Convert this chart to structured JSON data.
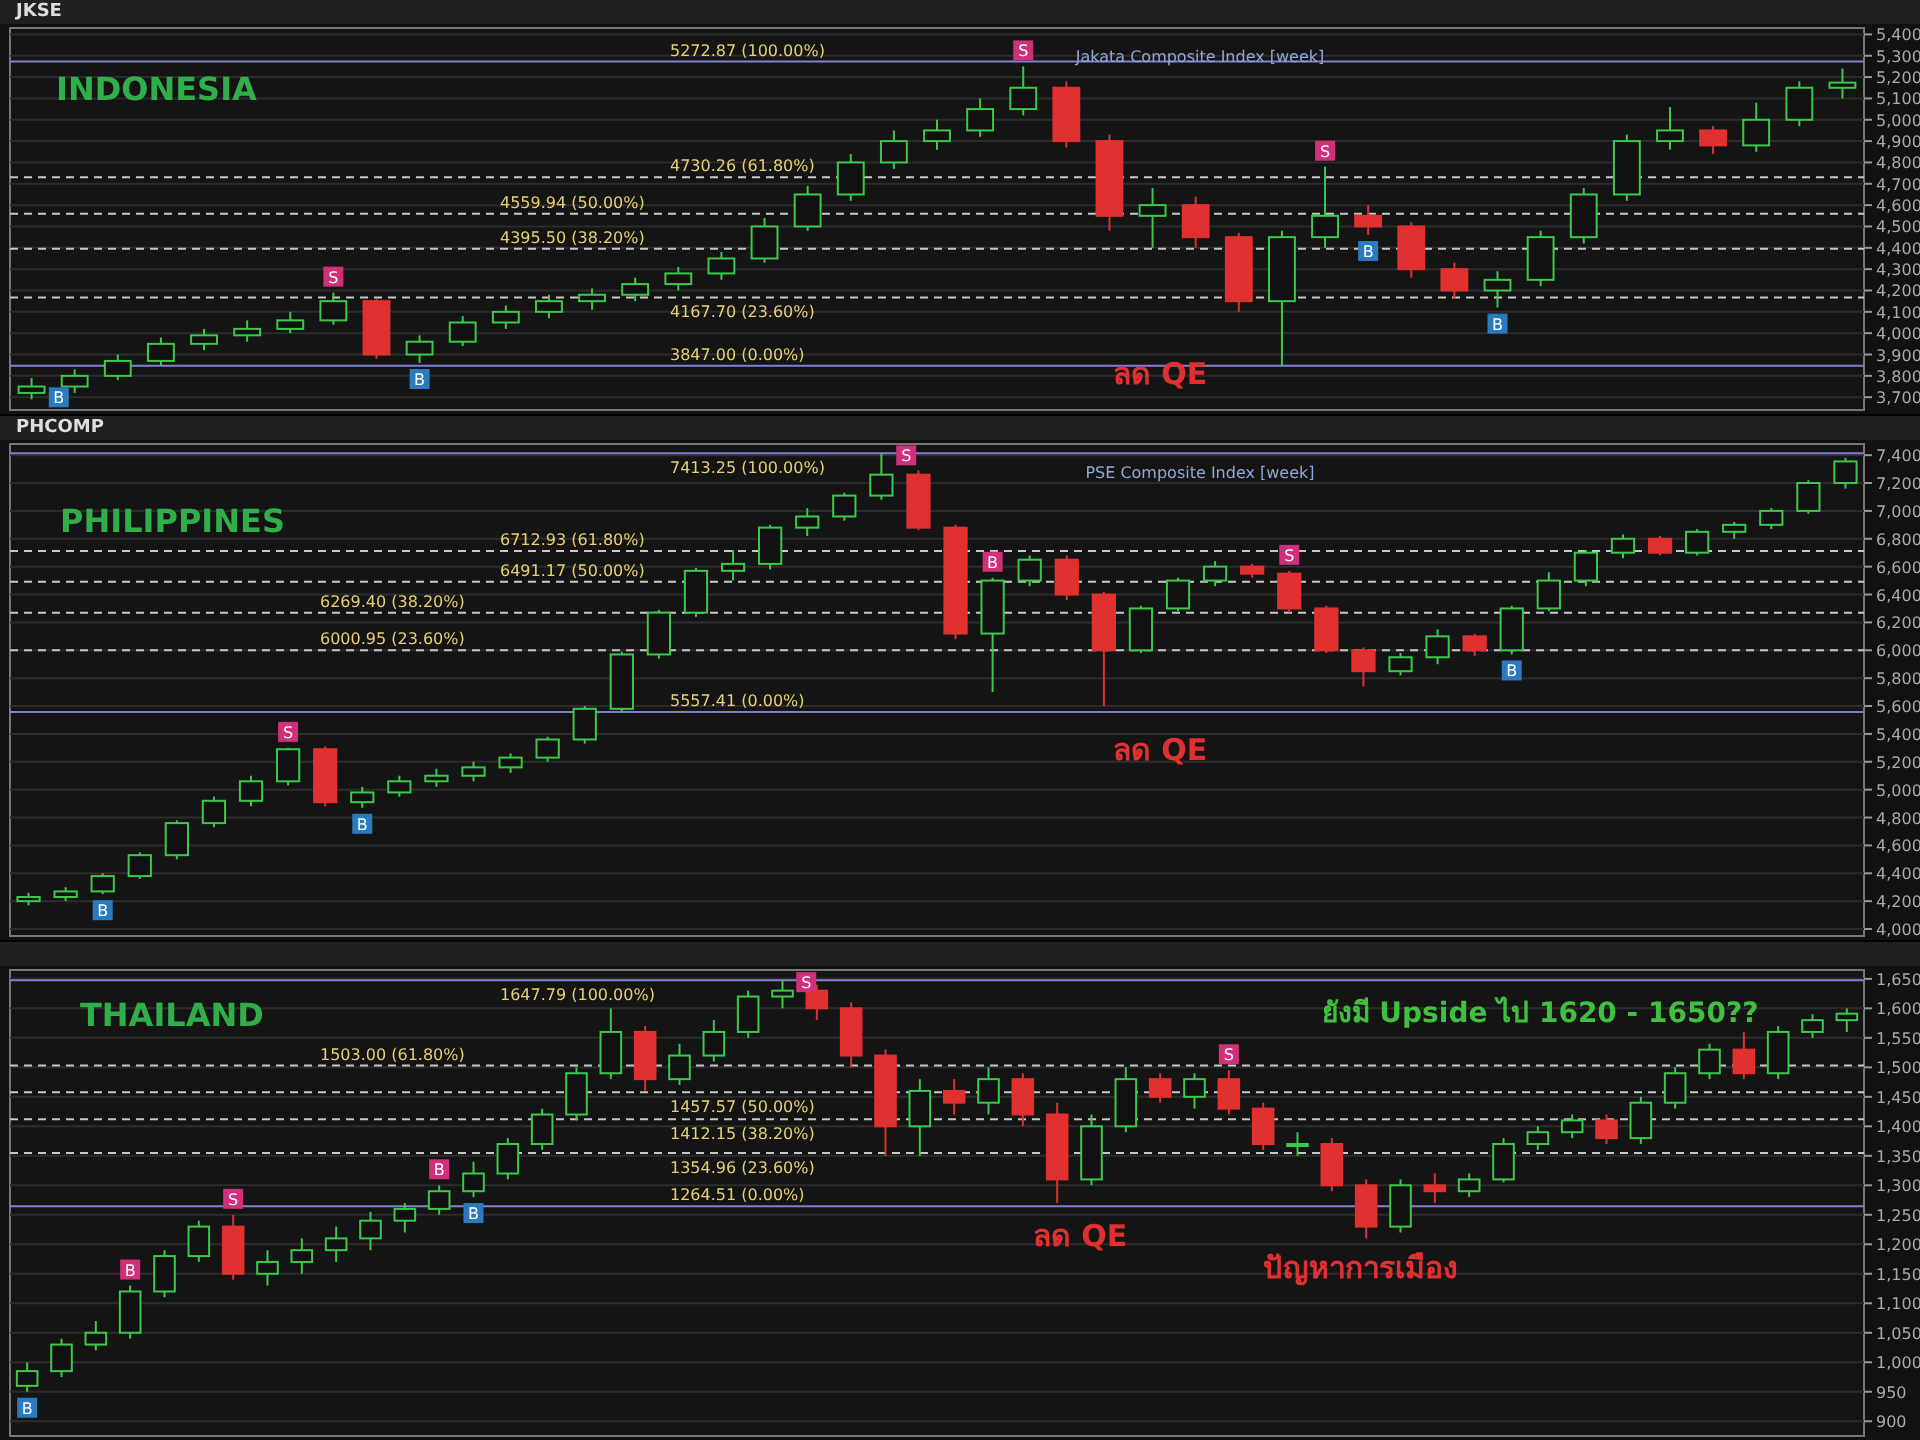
{
  "chart_data": [
    {
      "type": "candlestick",
      "title": "Jakata Composite Index [week]",
      "subtitle": "INDONESIA",
      "grid": "y",
      "categories": [
        null,
        null,
        null,
        null,
        null,
        null,
        null,
        null,
        null,
        null,
        null,
        null,
        null,
        null,
        null,
        null,
        null,
        null,
        null,
        null,
        null,
        null,
        null,
        null,
        null,
        null,
        null,
        null,
        null,
        null,
        null,
        null,
        null,
        null,
        null,
        null,
        null,
        null,
        null,
        null,
        null,
        null,
        null
      ],
      "ohlc": [
        [
          3720,
          3790,
          3690,
          3750
        ],
        [
          3750,
          3830,
          3720,
          3800
        ],
        [
          3800,
          3900,
          3780,
          3870
        ],
        [
          3870,
          3980,
          3850,
          3950
        ],
        [
          3950,
          4020,
          3920,
          3990
        ],
        [
          3990,
          4060,
          3960,
          4020
        ],
        [
          4020,
          4100,
          4000,
          4060
        ],
        [
          4060,
          4190,
          4040,
          4150
        ],
        [
          4150,
          4160,
          3880,
          3900
        ],
        [
          3900,
          3990,
          3860,
          3960
        ],
        [
          3960,
          4080,
          3940,
          4050
        ],
        [
          4050,
          4130,
          4020,
          4100
        ],
        [
          4100,
          4180,
          4070,
          4150
        ],
        [
          4150,
          4210,
          4110,
          4180
        ],
        [
          4180,
          4260,
          4150,
          4230
        ],
        [
          4230,
          4310,
          4200,
          4280
        ],
        [
          4280,
          4380,
          4250,
          4350
        ],
        [
          4350,
          4540,
          4330,
          4500
        ],
        [
          4500,
          4690,
          4480,
          4650
        ],
        [
          4650,
          4840,
          4620,
          4800
        ],
        [
          4800,
          4950,
          4770,
          4900
        ],
        [
          4900,
          5000,
          4860,
          4950
        ],
        [
          4950,
          5100,
          4920,
          5050
        ],
        [
          5050,
          5250,
          5020,
          5150
        ],
        [
          5150,
          5180,
          4870,
          4900
        ],
        [
          4900,
          4930,
          4480,
          4550
        ],
        [
          4550,
          4680,
          4400,
          4600
        ],
        [
          4600,
          4640,
          4400,
          4450
        ],
        [
          4450,
          4470,
          4100,
          4150
        ],
        [
          4150,
          4480,
          3847,
          4450
        ],
        [
          4450,
          4780,
          4400,
          4550
        ],
        [
          4550,
          4600,
          4460,
          4500
        ],
        [
          4500,
          4520,
          4260,
          4300
        ],
        [
          4300,
          4330,
          4160,
          4200
        ],
        [
          4200,
          4290,
          4120,
          4250
        ],
        [
          4250,
          4480,
          4220,
          4450
        ],
        [
          4450,
          4680,
          4420,
          4650
        ],
        [
          4650,
          4930,
          4620,
          4900
        ],
        [
          4900,
          5060,
          4860,
          4950
        ],
        [
          4950,
          4970,
          4840,
          4880
        ],
        [
          4880,
          5080,
          4850,
          5000
        ],
        [
          5000,
          5180,
          4970,
          5150
        ],
        [
          5150,
          5240,
          5100,
          5174
        ]
      ],
      "ylim": [
        3640,
        5430
      ],
      "yticks": [
        {
          "value": 3700,
          "label": "3,700"
        },
        {
          "value": 3800,
          "label": "3,800"
        },
        {
          "value": 3900,
          "label": "3,900"
        },
        {
          "value": 4000,
          "label": "4,000"
        },
        {
          "value": 4100,
          "label": "4,100"
        },
        {
          "value": 4200,
          "label": "4,200"
        },
        {
          "value": 4300,
          "label": "4,300"
        },
        {
          "value": 4400,
          "label": "4,400"
        },
        {
          "value": 4500,
          "label": "4,500"
        },
        {
          "value": 4600,
          "label": "4,600"
        },
        {
          "value": 4700,
          "label": "4,700"
        },
        {
          "value": 4800,
          "label": "4,800"
        },
        {
          "value": 4900,
          "label": "4,900"
        },
        {
          "value": 5000,
          "label": "5,000"
        },
        {
          "value": 5100,
          "label": "5,100"
        },
        {
          "value": 5200,
          "label": "5,200"
        },
        {
          "value": 5300,
          "label": "5,300"
        },
        {
          "value": 5400,
          "label": "5,400"
        }
      ],
      "ref_lines": [
        {
          "axis": "y",
          "value": 5272.87,
          "label": "5272.87 (100.00%)",
          "color": "#8080d0",
          "line_style": "solid"
        },
        {
          "axis": "y",
          "value": 4730.26,
          "label": "4730.26 (61.80%)",
          "color": "#c8c8c8",
          "line_style": "dashed"
        },
        {
          "axis": "y",
          "value": 4559.94,
          "label": "4559.94 (50.00%)",
          "color": "#c8c8c8",
          "line_style": "dashed"
        },
        {
          "axis": "y",
          "value": 4395.5,
          "label": "4395.50 (38.20%)",
          "color": "#c8c8c8",
          "line_style": "dashed"
        },
        {
          "axis": "y",
          "value": 4167.7,
          "label": "4167.70 (23.60%)",
          "color": "#c8c8c8",
          "line_style": "dashed"
        },
        {
          "axis": "y",
          "value": 3847,
          "label": "3847.00 (0.00%)",
          "color": "#8080d0",
          "line_style": "solid"
        }
      ],
      "annotations": [
        "JKSE",
        "ลด QE",
        {
          "text": "B",
          "y": 3690
        },
        {
          "text": "S",
          "y": 4190
        },
        {
          "text": "B",
          "y": 3860
        },
        {
          "text": "S",
          "y": 5250
        },
        {
          "text": "B",
          "y": 4460
        },
        {
          "text": "S",
          "y": 4780
        },
        {
          "text": "B",
          "y": 4120
        }
      ]
    },
    {
      "type": "candlestick",
      "title": "PSE Composite Index [week]",
      "subtitle": "PHILIPPINES",
      "grid": "y",
      "categories": [
        null,
        null,
        null,
        null,
        null,
        null,
        null,
        null,
        null,
        null,
        null,
        null,
        null,
        null,
        null,
        null,
        null,
        null,
        null,
        null,
        null,
        null,
        null,
        null,
        null,
        null,
        null,
        null,
        null,
        null,
        null,
        null,
        null,
        null,
        null,
        null,
        null,
        null,
        null,
        null,
        null,
        null,
        null,
        null,
        null,
        null,
        null,
        null,
        null,
        null
      ],
      "ohlc": [
        [
          4200,
          4260,
          4170,
          4230
        ],
        [
          4230,
          4300,
          4200,
          4270
        ],
        [
          4270,
          4400,
          4250,
          4380
        ],
        [
          4380,
          4550,
          4360,
          4530
        ],
        [
          4530,
          4780,
          4500,
          4760
        ],
        [
          4760,
          4950,
          4730,
          4920
        ],
        [
          4920,
          5100,
          4880,
          5060
        ],
        [
          5060,
          5300,
          5030,
          5290
        ],
        [
          5290,
          5310,
          4880,
          4910
        ],
        [
          4910,
          5020,
          4870,
          4980
        ],
        [
          4980,
          5100,
          4950,
          5060
        ],
        [
          5060,
          5150,
          5020,
          5100
        ],
        [
          5100,
          5200,
          5060,
          5160
        ],
        [
          5160,
          5260,
          5120,
          5230
        ],
        [
          5230,
          5380,
          5200,
          5360
        ],
        [
          5360,
          5600,
          5330,
          5580
        ],
        [
          5580,
          5990,
          5560,
          5970
        ],
        [
          5970,
          6290,
          5940,
          6270
        ],
        [
          6270,
          6590,
          6240,
          6570
        ],
        [
          6570,
          6720,
          6500,
          6620
        ],
        [
          6620,
          6900,
          6580,
          6880
        ],
        [
          6880,
          7020,
          6820,
          6960
        ],
        [
          6960,
          7130,
          6930,
          7110
        ],
        [
          7110,
          7413,
          7080,
          7260
        ],
        [
          7260,
          7290,
          6860,
          6880
        ],
        [
          6880,
          6900,
          6080,
          6120
        ],
        [
          6120,
          6520,
          5700,
          6500
        ],
        [
          6500,
          6680,
          6460,
          6650
        ],
        [
          6650,
          6680,
          6360,
          6400
        ],
        [
          6400,
          6420,
          5600,
          6000
        ],
        [
          6000,
          6320,
          5980,
          6300
        ],
        [
          6300,
          6520,
          6280,
          6500
        ],
        [
          6500,
          6640,
          6460,
          6600
        ],
        [
          6600,
          6620,
          6520,
          6550
        ],
        [
          6550,
          6570,
          6270,
          6300
        ],
        [
          6300,
          6320,
          5980,
          6000
        ],
        [
          6000,
          6020,
          5740,
          5850
        ],
        [
          5850,
          5980,
          5820,
          5950
        ],
        [
          5950,
          6150,
          5900,
          6100
        ],
        [
          6100,
          6120,
          5960,
          6000
        ],
        [
          6000,
          6320,
          5970,
          6300
        ],
        [
          6300,
          6560,
          6280,
          6500
        ],
        [
          6500,
          6720,
          6460,
          6700
        ],
        [
          6700,
          6830,
          6660,
          6800
        ],
        [
          6800,
          6820,
          6680,
          6700
        ],
        [
          6700,
          6870,
          6680,
          6850
        ],
        [
          6850,
          6920,
          6800,
          6900
        ],
        [
          6900,
          7020,
          6870,
          7000
        ],
        [
          7000,
          7220,
          6980,
          7200
        ],
        [
          7200,
          7380,
          7160,
          7355
        ]
      ],
      "ylim": [
        3950,
        7480
      ],
      "yticks": [
        {
          "value": 4000,
          "label": "4,000"
        },
        {
          "value": 4200,
          "label": "4,200"
        },
        {
          "value": 4400,
          "label": "4,400"
        },
        {
          "value": 4600,
          "label": "4,600"
        },
        {
          "value": 4800,
          "label": "4,800"
        },
        {
          "value": 5000,
          "label": "5,000"
        },
        {
          "value": 5200,
          "label": "5,200"
        },
        {
          "value": 5400,
          "label": "5,400"
        },
        {
          "value": 5600,
          "label": "5,600"
        },
        {
          "value": 5800,
          "label": "5,800"
        },
        {
          "value": 6000,
          "label": "6,000"
        },
        {
          "value": 6200,
          "label": "6,200"
        },
        {
          "value": 6400,
          "label": "6,400"
        },
        {
          "value": 6600,
          "label": "6,600"
        },
        {
          "value": 6800,
          "label": "6,800"
        },
        {
          "value": 7000,
          "label": "7,000"
        },
        {
          "value": 7200,
          "label": "7,200"
        },
        {
          "value": 7400,
          "label": "7,400"
        }
      ],
      "ref_lines": [
        {
          "axis": "y",
          "value": 7413.25,
          "label": "7413.25 (100.00%)",
          "color": "#8080d0",
          "line_style": "solid"
        },
        {
          "axis": "y",
          "value": 6712.93,
          "label": "6712.93 (61.80%)",
          "color": "#c8c8c8",
          "line_style": "dashed"
        },
        {
          "axis": "y",
          "value": 6491.17,
          "label": "6491.17 (50.00%)",
          "color": "#c8c8c8",
          "line_style": "dashed"
        },
        {
          "axis": "y",
          "value": 6269.4,
          "label": "6269.40 (38.20%)",
          "color": "#c8c8c8",
          "line_style": "dashed"
        },
        {
          "axis": "y",
          "value": 6000.95,
          "label": "6000.95 (23.60%)",
          "color": "#c8c8c8",
          "line_style": "dashed"
        },
        {
          "axis": "y",
          "value": 5557.41,
          "label": "5557.41 (0.00%)",
          "color": "#8080d0",
          "line_style": "solid"
        }
      ],
      "annotations": [
        "PHCOMP",
        "ลด QE",
        {
          "text": "B",
          "y": 4250
        },
        {
          "text": "S",
          "y": 5300
        },
        {
          "text": "B",
          "y": 4870
        },
        {
          "text": "S",
          "y": 7413
        },
        {
          "text": "B",
          "y": 6520
        },
        {
          "text": "S",
          "y": 6570
        },
        {
          "text": "B",
          "y": 5970
        }
      ]
    },
    {
      "type": "candlestick",
      "subtitle": "THAILAND",
      "grid": "y",
      "categories": [
        null,
        null,
        null,
        null,
        null,
        null,
        null,
        null,
        null,
        null,
        null,
        null,
        null,
        null,
        null,
        null,
        null,
        null,
        null,
        null,
        null,
        null,
        null,
        null,
        null,
        null,
        null,
        null,
        null,
        null,
        null,
        null,
        null,
        null,
        null,
        null,
        null,
        null,
        null,
        null,
        null,
        null,
        null,
        null,
        null,
        null,
        null,
        null,
        null,
        null,
        null,
        null,
        null,
        null
      ],
      "ohlc": [
        [
          960,
          1000,
          950,
          985
        ],
        [
          985,
          1040,
          975,
          1030
        ],
        [
          1030,
          1070,
          1020,
          1050
        ],
        [
          1050,
          1130,
          1040,
          1120
        ],
        [
          1120,
          1190,
          1110,
          1180
        ],
        [
          1180,
          1240,
          1170,
          1230
        ],
        [
          1230,
          1250,
          1140,
          1150
        ],
        [
          1150,
          1190,
          1130,
          1170
        ],
        [
          1170,
          1210,
          1150,
          1190
        ],
        [
          1190,
          1230,
          1170,
          1210
        ],
        [
          1210,
          1255,
          1190,
          1240
        ],
        [
          1240,
          1270,
          1220,
          1260
        ],
        [
          1260,
          1300,
          1250,
          1290
        ],
        [
          1290,
          1340,
          1280,
          1320
        ],
        [
          1320,
          1380,
          1310,
          1370
        ],
        [
          1370,
          1430,
          1360,
          1420
        ],
        [
          1420,
          1500,
          1410,
          1490
        ],
        [
          1490,
          1600,
          1480,
          1560
        ],
        [
          1560,
          1570,
          1460,
          1480
        ],
        [
          1480,
          1540,
          1470,
          1520
        ],
        [
          1520,
          1580,
          1510,
          1560
        ],
        [
          1560,
          1630,
          1550,
          1620
        ],
        [
          1620,
          1647.79,
          1600,
          1630
        ],
        [
          1630,
          1640,
          1580,
          1600
        ],
        [
          1600,
          1610,
          1500,
          1520
        ],
        [
          1520,
          1530,
          1350,
          1400
        ],
        [
          1400,
          1480,
          1350,
          1460
        ],
        [
          1460,
          1480,
          1420,
          1440
        ],
        [
          1440,
          1500,
          1420,
          1480
        ],
        [
          1480,
          1490,
          1400,
          1420
        ],
        [
          1420,
          1440,
          1270,
          1310
        ],
        [
          1310,
          1420,
          1300,
          1400
        ],
        [
          1400,
          1500,
          1390,
          1480
        ],
        [
          1480,
          1490,
          1440,
          1450
        ],
        [
          1450,
          1490,
          1430,
          1480
        ],
        [
          1480,
          1495,
          1420,
          1430
        ],
        [
          1430,
          1440,
          1360,
          1370
        ],
        [
          1370,
          1390,
          1350,
          1370
        ],
        [
          1370,
          1380,
          1290,
          1300
        ],
        [
          1300,
          1310,
          1210,
          1230
        ],
        [
          1230,
          1310,
          1220,
          1300
        ],
        [
          1300,
          1320,
          1270,
          1290
        ],
        [
          1290,
          1320,
          1280,
          1310
        ],
        [
          1310,
          1380,
          1305,
          1370
        ],
        [
          1370,
          1400,
          1360,
          1390
        ],
        [
          1390,
          1420,
          1380,
          1410
        ],
        [
          1410,
          1420,
          1370,
          1380
        ],
        [
          1380,
          1450,
          1370,
          1440
        ],
        [
          1440,
          1500,
          1430,
          1490
        ],
        [
          1490,
          1540,
          1480,
          1530
        ],
        [
          1530,
          1560,
          1480,
          1490
        ],
        [
          1490,
          1570,
          1480,
          1560
        ],
        [
          1560,
          1590,
          1550,
          1580
        ],
        [
          1580,
          1600,
          1560,
          1591
        ]
      ],
      "ylim": [
        875,
        1665
      ],
      "yticks": [
        {
          "value": 900,
          "label": "900"
        },
        {
          "value": 950,
          "label": "950"
        },
        {
          "value": 1000,
          "label": "1,000"
        },
        {
          "value": 1050,
          "label": "1,050"
        },
        {
          "value": 1100,
          "label": "1,100"
        },
        {
          "value": 1150,
          "label": "1,150"
        },
        {
          "value": 1200,
          "label": "1,200"
        },
        {
          "value": 1250,
          "label": "1,250"
        },
        {
          "value": 1300,
          "label": "1,300"
        },
        {
          "value": 1350,
          "label": "1,350"
        },
        {
          "value": 1400,
          "label": "1,400"
        },
        {
          "value": 1450,
          "label": "1,450"
        },
        {
          "value": 1500,
          "label": "1,500"
        },
        {
          "value": 1550,
          "label": "1,550"
        },
        {
          "value": 1600,
          "label": "1,600"
        },
        {
          "value": 1650,
          "label": "1,650"
        }
      ],
      "ref_lines": [
        {
          "axis": "y",
          "value": 1647.79,
          "label": "1647.79 (100.00%)",
          "color": "#8080d0",
          "line_style": "solid"
        },
        {
          "axis": "y",
          "value": 1503,
          "label": "1503.00 (61.80%)",
          "color": "#c8c8c8",
          "line_style": "dashed"
        },
        {
          "axis": "y",
          "value": 1457.57,
          "label": "1457.57 (50.00%)",
          "color": "#c8c8c8",
          "line_style": "dashed"
        },
        {
          "axis": "y",
          "value": 1412.15,
          "label": "1412.15 (38.20%)",
          "color": "#c8c8c8",
          "line_style": "dashed"
        },
        {
          "axis": "y",
          "value": 1354.96,
          "label": "1354.96 (23.60%)",
          "color": "#c8c8c8",
          "line_style": "dashed"
        },
        {
          "axis": "y",
          "value": 1264.51,
          "label": "1264.51 (0.00%)",
          "color": "#8080d0",
          "line_style": "solid"
        }
      ],
      "annotations": [
        "ลด QE",
        "ปัญหาการเมือง",
        "ยังมี Upside ไป 1620 - 1650??",
        {
          "text": "B",
          "y": 950
        },
        {
          "text": "S",
          "y": 1250
        },
        {
          "text": "B",
          "y": 1130
        },
        {
          "text": "S",
          "y": 1647.79
        },
        {
          "text": "B",
          "y": 1300
        },
        {
          "text": "S",
          "y": 1495
        },
        {
          "text": "B",
          "y": 1280
        }
      ]
    }
  ]
}
